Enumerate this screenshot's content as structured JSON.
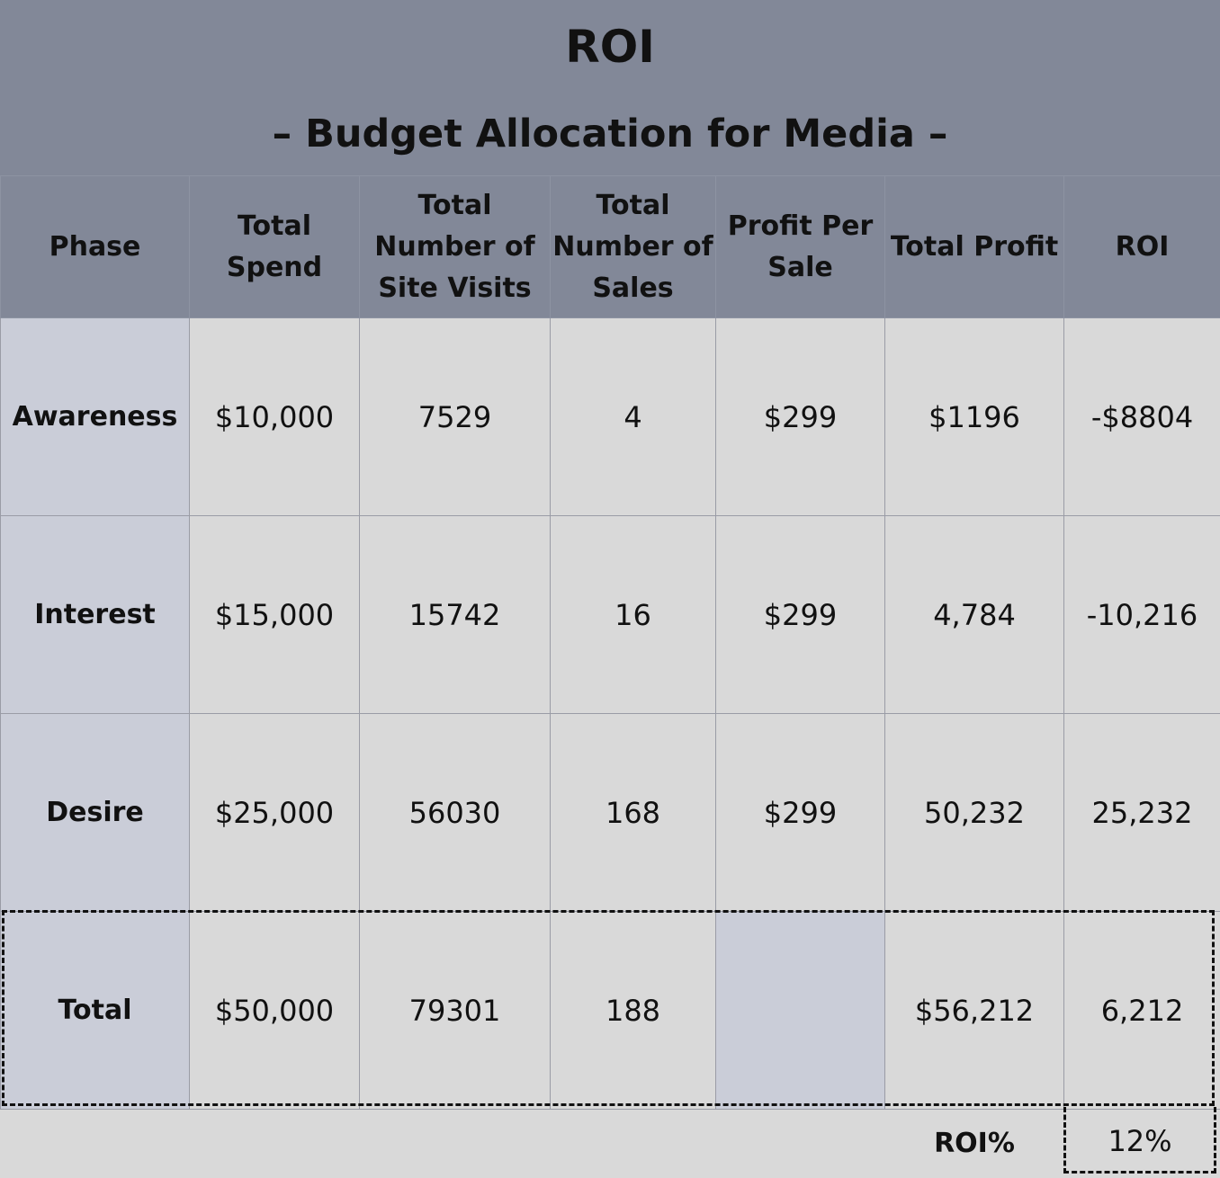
{
  "title": "ROI",
  "subtitle": "– Budget Allocation for Media –",
  "columns": [
    "Phase",
    "Total Spend",
    "Total Number of Site Visits",
    "Total Number of  Sales",
    "Profit Per Sale",
    "Total Profit",
    "ROI"
  ],
  "rows": [
    {
      "phase": "Awareness",
      "total_spend": "$10,000",
      "site_visits": "7529",
      "sales": "4",
      "profit_per_sale": "$299",
      "total_profit": "$1196",
      "roi": "-$8804"
    },
    {
      "phase": "Interest",
      "total_spend": "$15,000",
      "site_visits": "15742",
      "sales": "16",
      "profit_per_sale": "$299",
      "total_profit": "4,784",
      "roi": "-10,216"
    },
    {
      "phase": "Desire",
      "total_spend": "$25,000",
      "site_visits": "56030",
      "sales": "168",
      "profit_per_sale": "$299",
      "total_profit": "50,232",
      "roi": "25,232"
    }
  ],
  "total": {
    "phase": "Total",
    "total_spend": "$50,000",
    "site_visits": "79301",
    "sales": "188",
    "profit_per_sale": "",
    "total_profit": "$56,212",
    "roi": "6,212"
  },
  "footer": {
    "label": "ROI%",
    "value": "12%"
  },
  "colors": {
    "header_bg": "#828898",
    "phase_bg": "#cacdd8",
    "cell_bg": "#d9d9d9"
  }
}
